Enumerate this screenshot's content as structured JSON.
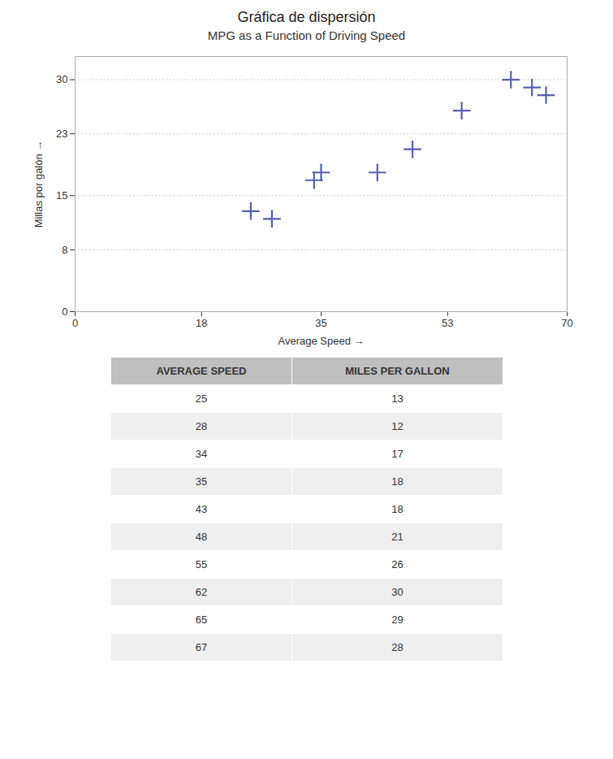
{
  "chart_data": {
    "type": "scatter",
    "title": "Gráfica de dispersión",
    "subtitle": "MPG as a Function of Driving Speed",
    "x_label": "Average Speed",
    "y_label": "Millas por galón",
    "x": [
      25,
      28,
      34,
      35,
      43,
      48,
      55,
      62,
      65,
      67
    ],
    "values": [
      13,
      12,
      17,
      18,
      18,
      21,
      26,
      30,
      29,
      28
    ],
    "color": "#5560b0",
    "marker": "plus",
    "xlim": [
      0,
      70
    ],
    "ylim": [
      0,
      33
    ],
    "xticks": [
      0,
      18,
      35,
      53,
      70
    ],
    "yticks": [
      0,
      8,
      15,
      23,
      30
    ],
    "grid": "y",
    "table": {
      "headers": [
        "AVERAGE SPEED",
        "MILES PER GALLON"
      ],
      "rows": [
        [
          25,
          13
        ],
        [
          28,
          12
        ],
        [
          34,
          17
        ],
        [
          35,
          18
        ],
        [
          43,
          18
        ],
        [
          48,
          21
        ],
        [
          55,
          26
        ],
        [
          62,
          30
        ],
        [
          65,
          29
        ],
        [
          67,
          28
        ]
      ],
      "header_color": "#c0bfbf",
      "row_colors": [
        "#ffffff",
        "#efefef"
      ]
    }
  }
}
